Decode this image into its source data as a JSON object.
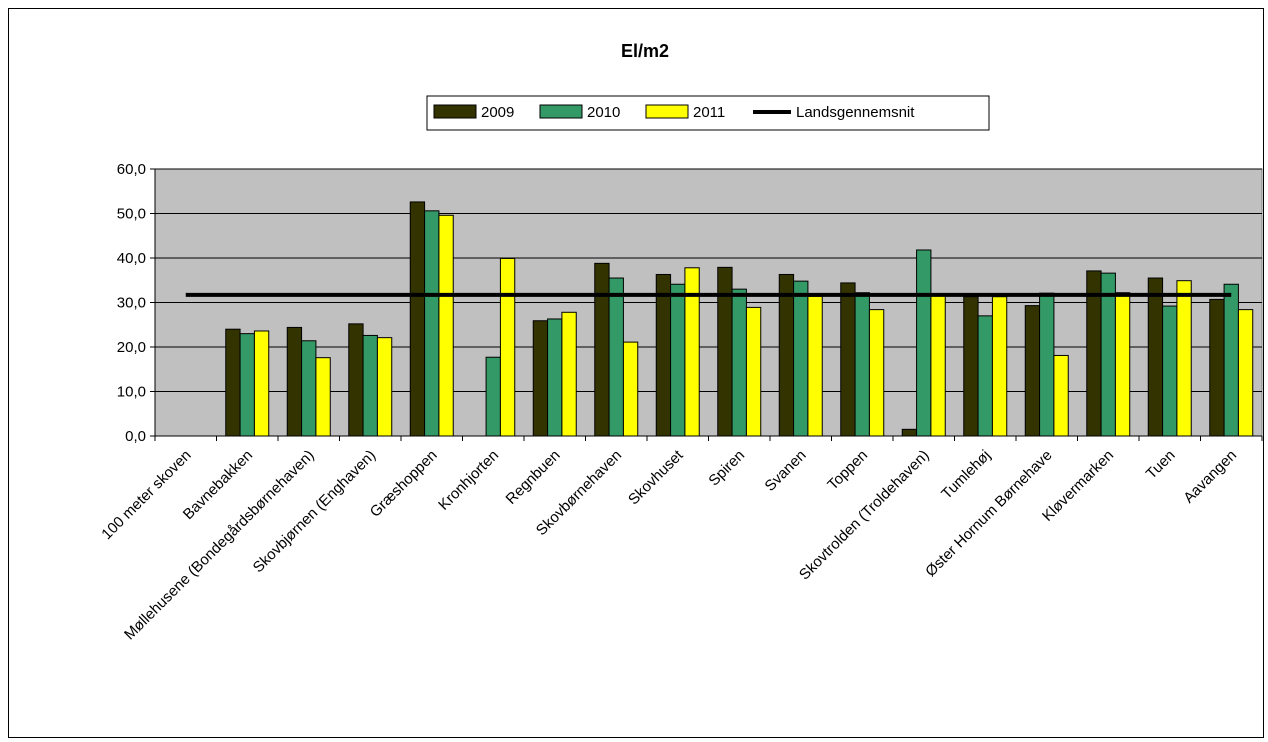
{
  "chart_data": {
    "type": "bar",
    "title": "El/m2",
    "xlabel": "",
    "ylabel": "",
    "ylim": [
      0,
      60
    ],
    "yticks": [
      "0,0",
      "10,0",
      "20,0",
      "30,0",
      "40,0",
      "50,0",
      "60,0"
    ],
    "grid": true,
    "legend_position": "top-center",
    "plot_background": "#c0c0c0",
    "categories": [
      "100 meter skoven",
      "Bavnebakken",
      "Møllehusene (Bondegårdsbørnehaven)",
      "Skovbjørnen (Enghaven)",
      "Græshoppen",
      "Kronhjorten",
      "Regnbuen",
      "Skovbørnehaven",
      "Skovhuset",
      "Spiren",
      "Svanen",
      "Toppen",
      "Skovtrolden (Troldehaven)",
      "Tumlehøj",
      "Øster Hornum Børnehave",
      "Kløvermarken",
      "Tuen",
      "Aavangen"
    ],
    "series": [
      {
        "name": "2009",
        "color": "#333300",
        "values": [
          null,
          24.0,
          24.4,
          25.2,
          52.6,
          null,
          25.9,
          38.8,
          36.3,
          37.9,
          36.3,
          34.4,
          1.5,
          31.3,
          29.3,
          37.1,
          35.5,
          30.7
        ]
      },
      {
        "name": "2010",
        "color": "#339966",
        "values": [
          null,
          23.0,
          21.4,
          22.6,
          50.6,
          17.7,
          26.3,
          35.5,
          34.1,
          33.0,
          34.8,
          32.2,
          41.8,
          27.0,
          32.1,
          36.6,
          29.2,
          34.1
        ]
      },
      {
        "name": "2011",
        "color": "#ffff00",
        "values": [
          null,
          23.6,
          17.6,
          22.1,
          49.6,
          39.9,
          27.8,
          21.1,
          37.8,
          28.9,
          31.4,
          28.4,
          31.5,
          31.3,
          18.1,
          32.2,
          34.9,
          28.4
        ]
      }
    ],
    "reference_line": {
      "name": "Landsgennemsnit",
      "value": 31.7,
      "color": "#000000"
    }
  }
}
